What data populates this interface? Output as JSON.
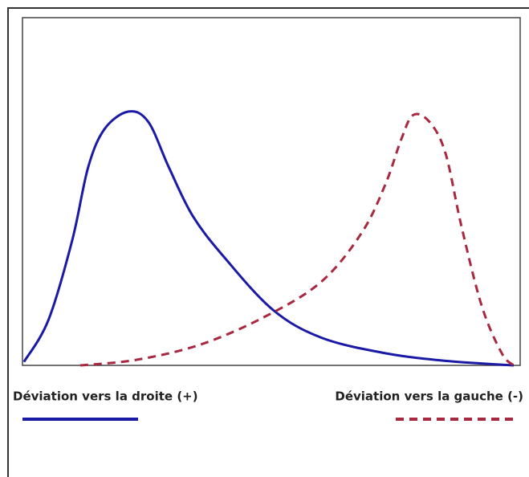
{
  "chart_data": {
    "type": "line",
    "series": [
      {
        "name": "Déviation vers la droite (+)",
        "color": "#1a1aa6",
        "dash": false,
        "x": [
          0.03,
          0.52,
          1.0,
          1.32,
          1.65,
          2.13,
          2.53,
          2.94,
          3.42,
          4.06,
          5.03,
          6.0,
          7.29,
          8.58,
          9.87
        ],
        "values": [
          0.01,
          0.13,
          0.36,
          0.57,
          0.68,
          0.73,
          0.7,
          0.57,
          0.43,
          0.31,
          0.16,
          0.08,
          0.035,
          0.012,
          0
        ]
      },
      {
        "name": "Déviation vers la gauche (-)",
        "color": "#a82840",
        "dash": true,
        "x": [
          1.16,
          2.29,
          3.58,
          4.87,
          6.0,
          6.81,
          7.29,
          7.61,
          7.85,
          8.18,
          8.5,
          8.82,
          9.23,
          9.63,
          9.87
        ],
        "values": [
          0,
          0.016,
          0.06,
          0.14,
          0.24,
          0.38,
          0.52,
          0.65,
          0.72,
          0.7,
          0.61,
          0.4,
          0.17,
          0.035,
          0
        ]
      }
    ],
    "xlim": [
      0,
      10
    ],
    "ylim": [
      0,
      1
    ]
  }
}
